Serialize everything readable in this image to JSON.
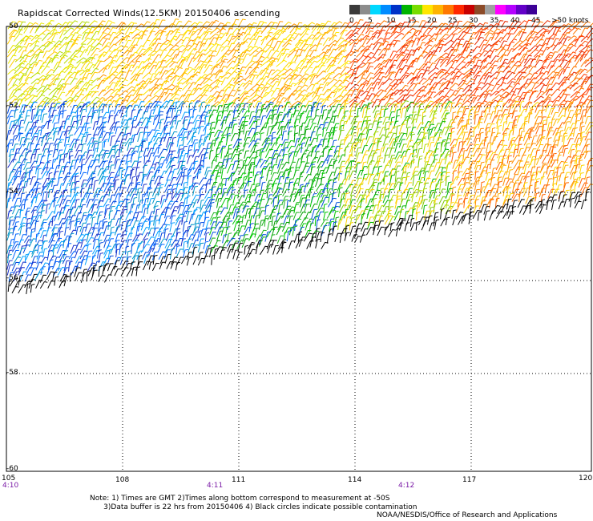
{
  "title": "Rapidscat Corrected Winds(12.5KM) 20150406 ascending",
  "legend": {
    "labels": [
      "0",
      "5",
      "10",
      "15",
      "20",
      "25",
      "30",
      "35",
      "40",
      "45",
      ">50 knots"
    ],
    "colors": [
      "#3a3a3a",
      "#8c8c8c",
      "#00d8ff",
      "#008cff",
      "#0032c8",
      "#00b400",
      "#78dc00",
      "#ffe600",
      "#ffb400",
      "#ff7800",
      "#ff2800",
      "#c80000",
      "#8c4b28",
      "#a0a0a0",
      "#ff00ff",
      "#b400ff",
      "#6400c8",
      "#3c0096"
    ]
  },
  "axes": {
    "lat_labels": [
      "-50",
      "-52",
      "-54",
      "-56",
      "-58",
      "-60"
    ],
    "lon_labels": [
      "105",
      "108",
      "111",
      "114",
      "117",
      "120"
    ],
    "time_labels": [
      "4:10",
      "4:11",
      "4:12"
    ]
  },
  "notes": [
    "Note: 1) Times are GMT 2)Times along bottom correspond to measurement at -50S",
    "      3)Data buffer is 22 hrs from 20150406 4) Black circles indicate possible contamination"
  ],
  "credit": "NOAA/NESDIS/Office of Research and Applications"
}
